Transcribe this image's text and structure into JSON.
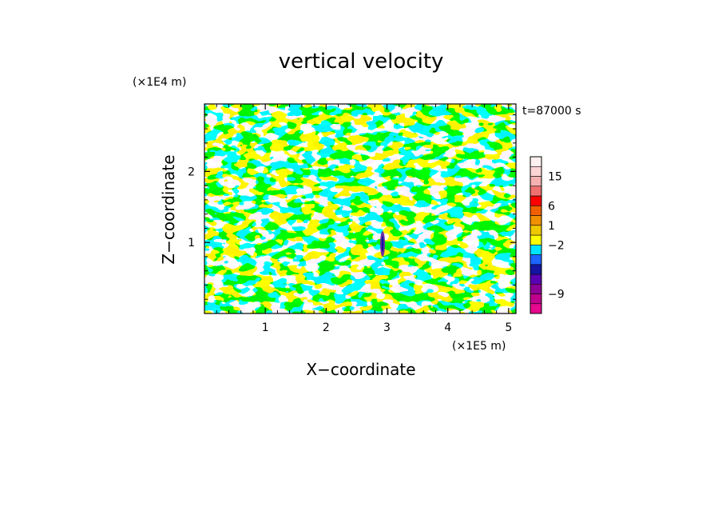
{
  "chart_data": {
    "type": "heatmap",
    "title": "vertical velocity",
    "xlabel": "X−coordinate",
    "ylabel": "Z−coordinate",
    "x_unit": "(×1E5 m)",
    "y_unit": "(×1E4 m)",
    "time_label": "t=87000 s",
    "xlim": [
      0,
      5.12
    ],
    "ylim": [
      0,
      2.95
    ],
    "x_ticks": [
      1,
      2,
      3,
      4,
      5
    ],
    "y_ticks": [
      1,
      2
    ],
    "x_tick_labels": [
      "1",
      "2",
      "3",
      "4",
      "5"
    ],
    "y_tick_labels": [
      "1",
      "2"
    ],
    "dominant_colors": {
      "positive_small": "#ffff00",
      "negative_small": "#00e5ff",
      "updraft_core": "#7030a0"
    },
    "colorbar": {
      "levels": [
        {
          "color": "#e6088e"
        },
        {
          "color": "#c0008c",
          "label": "−9"
        },
        {
          "color": "#8e0096"
        },
        {
          "color": "#5a00b4"
        },
        {
          "color": "#1414a0"
        },
        {
          "color": "#1e64ff"
        },
        {
          "color": "#00e5ff",
          "label": "−2"
        },
        {
          "color": "#ffff00"
        },
        {
          "color": "#f0c800",
          "label": "1"
        },
        {
          "color": "#f09000"
        },
        {
          "color": "#f06000",
          "label": "6"
        },
        {
          "color": "#ff0000"
        },
        {
          "color": "#f07070"
        },
        {
          "color": "#f5b0b0",
          "label": "15"
        },
        {
          "color": "#fcd4d4"
        },
        {
          "color": "#fff0f0"
        }
      ]
    }
  }
}
